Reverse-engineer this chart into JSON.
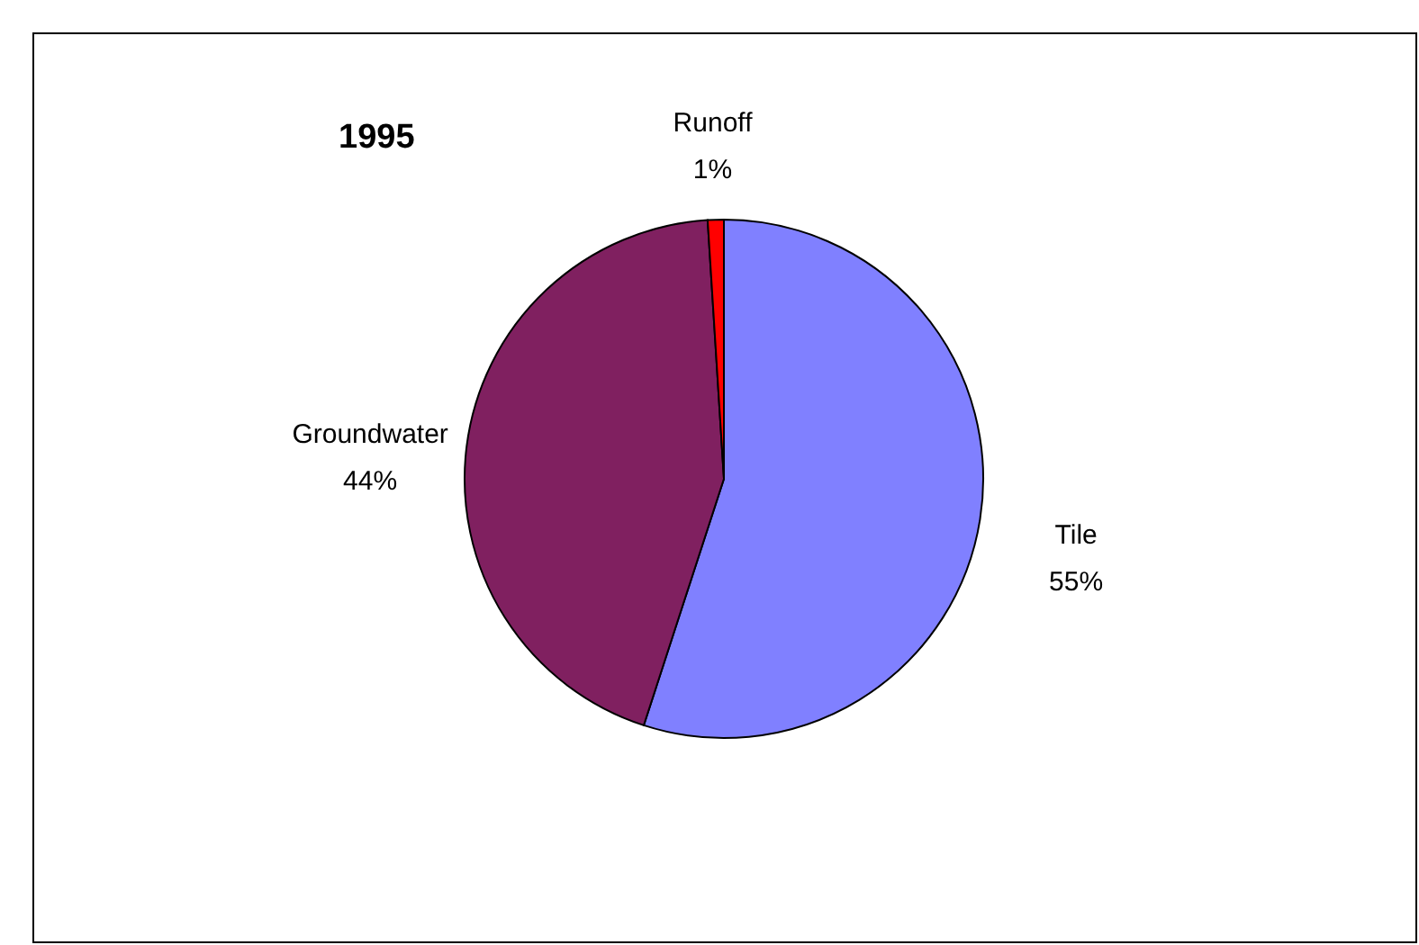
{
  "chart_data": {
    "type": "pie",
    "title": "1995",
    "categories": [
      "Tile",
      "Groundwater",
      "Runoff"
    ],
    "values": [
      55,
      44,
      1
    ],
    "value_labels": [
      "55%",
      "44%",
      "1%"
    ],
    "colors": [
      "#8080ff",
      "#802060",
      "#ff0000"
    ]
  }
}
